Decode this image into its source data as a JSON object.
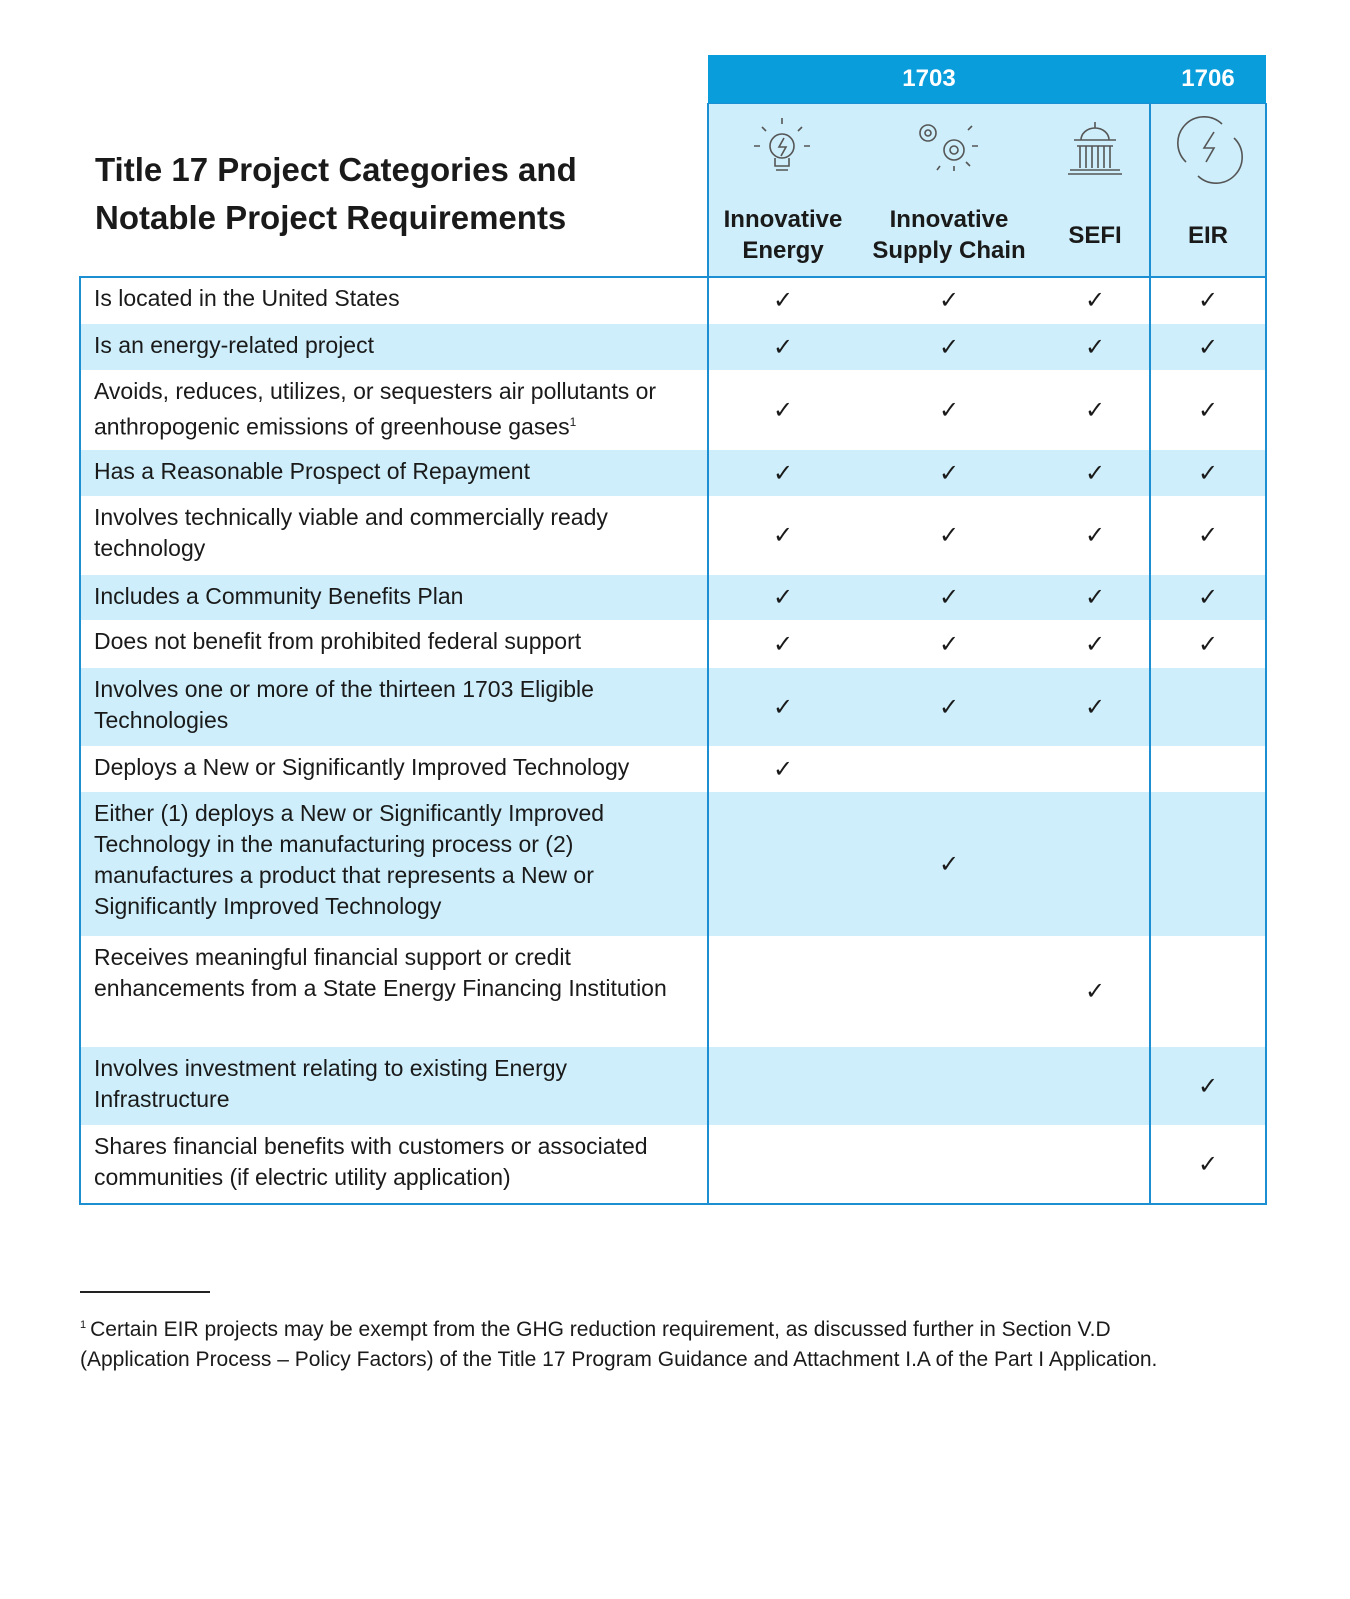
{
  "title": "Title 17 Project Categories and Notable Project Requirements",
  "table": {
    "groups": [
      {
        "label": "1703"
      },
      {
        "label": "1706"
      }
    ],
    "columns": [
      "Innovative Energy",
      "Innovative Supply Chain",
      "SEFI",
      "EIR"
    ],
    "rows": [
      {
        "requirement": "Is located in the United States",
        "cells": [
          "✓",
          "✓",
          "✓",
          "✓"
        ]
      },
      {
        "requirement": "Is an energy-related project",
        "cells": [
          "✓",
          "✓",
          "✓",
          "✓"
        ]
      },
      {
        "requirement": "Avoids, reduces, utilizes, or sequesters air pollutants or anthropogenic emissions of greenhouse gases",
        "footnote_ref": "1",
        "cells": [
          "✓",
          "✓",
          "✓",
          "✓"
        ]
      },
      {
        "requirement": "Has a Reasonable Prospect of Repayment",
        "cells": [
          "✓",
          "✓",
          "✓",
          "✓"
        ]
      },
      {
        "requirement": "Involves technically viable and commercially ready technology",
        "cells": [
          "✓",
          "✓",
          "✓",
          "✓"
        ]
      },
      {
        "requirement": "Includes a Community Benefits Plan",
        "cells": [
          "✓",
          "✓",
          "✓",
          "✓"
        ]
      },
      {
        "requirement": "Does not benefit from prohibited federal support",
        "cells": [
          "✓",
          "✓",
          "✓",
          "✓"
        ]
      },
      {
        "requirement": "Involves one or more of the thirteen 1703 Eligible Technologies",
        "cells": [
          "✓",
          "✓",
          "✓",
          null
        ]
      },
      {
        "requirement": "Deploys a New or Significantly Improved Technology",
        "cells": [
          "✓",
          null,
          null,
          null
        ]
      },
      {
        "requirement": "Either (1) deploys a New or Significantly Improved Technology in the manufacturing process or (2) manufactures a product that represents a New or Significantly Improved Technology",
        "cells": [
          null,
          "✓",
          null,
          null
        ]
      },
      {
        "requirement": "Receives meaningful financial support or credit enhancements from a State Energy Financing Institution",
        "cells": [
          null,
          null,
          "✓",
          null
        ]
      },
      {
        "requirement": "Involves investment relating to existing Energy Infrastructure",
        "cells": [
          null,
          null,
          null,
          "✓"
        ]
      },
      {
        "requirement": "Shares financial benefits with customers or associated communities (if electric utility application)",
        "cells": [
          null,
          null,
          null,
          "✓"
        ]
      }
    ]
  },
  "footnote": {
    "marker": "1",
    "text": "Certain EIR projects may be exempt from the GHG reduction requirement, as discussed further in Section V.D (Application Process – Policy Factors) of the Title 17 Program Guidance and Attachment I.A of the Part I Application."
  }
}
